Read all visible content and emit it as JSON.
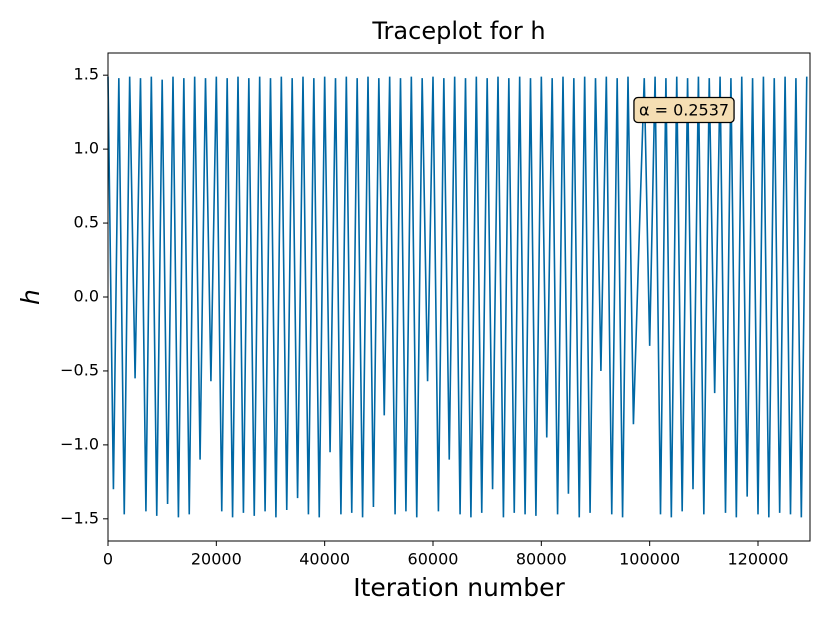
{
  "chart_data": {
    "type": "line",
    "title": "Traceplot for h",
    "xlabel": "Iteration number",
    "ylabel": "h",
    "annotation": "α = 0.2537",
    "xlim": [
      0,
      129600
    ],
    "ylim": [
      -1.65,
      1.65
    ],
    "xticks": [
      0,
      20000,
      40000,
      60000,
      80000,
      100000,
      120000
    ],
    "yticks": [
      {
        "value": -1.5,
        "label": "−1.5"
      },
      {
        "value": -1.0,
        "label": "−1.0"
      },
      {
        "value": -0.5,
        "label": "−0.5"
      },
      {
        "value": 0.0,
        "label": "0.0"
      },
      {
        "value": 0.5,
        "label": "0.5"
      },
      {
        "value": 1.0,
        "label": "1.0"
      },
      {
        "value": 1.5,
        "label": "1.5"
      }
    ],
    "grid": false,
    "x": [
      0,
      1000,
      2000,
      3000,
      4000,
      5000,
      6000,
      7000,
      8000,
      9000,
      10000,
      11000,
      12000,
      13000,
      14000,
      15000,
      16000,
      17000,
      18000,
      19000,
      20000,
      21000,
      22000,
      23000,
      24000,
      25000,
      26000,
      27000,
      28000,
      29000,
      30000,
      31000,
      32000,
      33000,
      34000,
      35000,
      36000,
      37000,
      38000,
      39000,
      40000,
      41000,
      42000,
      43000,
      44000,
      45000,
      46000,
      47000,
      48000,
      49000,
      50000,
      51000,
      52000,
      53000,
      54000,
      55000,
      56000,
      57000,
      58000,
      59000,
      60000,
      61000,
      62000,
      63000,
      64000,
      65000,
      66000,
      67000,
      68000,
      69000,
      70000,
      71000,
      72000,
      73000,
      74000,
      75000,
      76000,
      77000,
      78000,
      79000,
      80000,
      81000,
      82000,
      83000,
      84000,
      85000,
      86000,
      87000,
      88000,
      89000,
      90000,
      91000,
      92000,
      93000,
      94000,
      95000,
      96000,
      97000,
      98000,
      99000,
      100000,
      101000,
      102000,
      103000,
      104000,
      105000,
      106000,
      107000,
      108000,
      109000,
      110000,
      111000,
      112000,
      113000,
      114000,
      115000,
      116000,
      117000,
      118000,
      119000,
      120000,
      121000,
      122000,
      123000,
      124000,
      125000,
      126000,
      127000,
      128000,
      129000
    ],
    "series": [
      {
        "color": "#0068a5",
        "values": [
          1.49,
          -1.3,
          1.48,
          -1.47,
          1.49,
          -0.55,
          1.48,
          -1.45,
          1.49,
          -1.48,
          1.47,
          -1.4,
          1.49,
          -1.49,
          1.48,
          -1.47,
          1.49,
          -1.1,
          1.48,
          -0.57,
          1.49,
          -1.45,
          1.48,
          -1.49,
          1.49,
          -1.46,
          1.48,
          -1.48,
          1.49,
          -1.45,
          1.48,
          -1.49,
          1.49,
          -1.44,
          1.48,
          -1.36,
          1.49,
          -1.47,
          1.48,
          -1.49,
          1.49,
          -1.05,
          1.48,
          -1.47,
          1.49,
          -1.46,
          1.48,
          -1.49,
          1.49,
          -1.42,
          1.48,
          -0.8,
          1.49,
          -1.47,
          1.48,
          -1.45,
          1.49,
          -1.49,
          1.48,
          -0.57,
          1.49,
          -1.45,
          1.48,
          -1.1,
          1.49,
          -1.47,
          1.48,
          -1.49,
          1.49,
          -1.46,
          1.48,
          -1.3,
          1.49,
          -1.49,
          1.48,
          -1.46,
          1.49,
          -1.47,
          1.48,
          -1.48,
          1.49,
          -0.95,
          1.48,
          -1.47,
          1.49,
          -1.33,
          1.48,
          -1.49,
          1.49,
          -1.46,
          1.48,
          -0.5,
          1.49,
          -1.47,
          1.48,
          -1.49,
          1.49,
          -0.86,
          0.33,
          1.48,
          -0.33,
          1.49,
          -1.47,
          1.48,
          -1.49,
          1.49,
          -1.45,
          1.48,
          -1.3,
          1.49,
          -1.47,
          1.48,
          -0.65,
          1.49,
          -1.46,
          1.48,
          -1.49,
          1.49,
          -1.35,
          1.48,
          -1.47,
          1.49,
          -1.49,
          1.48,
          -1.46,
          1.49,
          -1.47,
          1.48,
          -1.49,
          1.49
        ]
      }
    ]
  }
}
